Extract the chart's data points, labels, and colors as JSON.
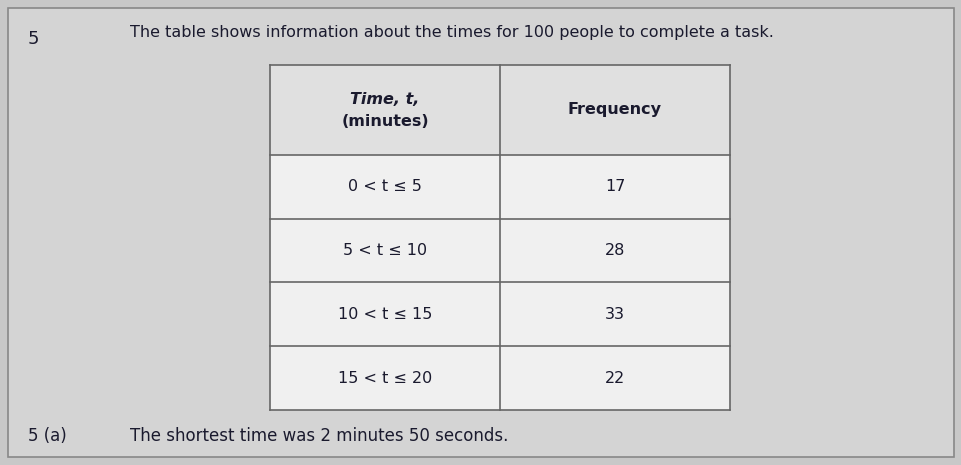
{
  "question_number": "5",
  "question_text": "The table shows information about the times for 100 people to complete a task.",
  "col1_header_line1": "Time, t,",
  "col1_header_line2": "(minutes)",
  "col2_header": "Frequency",
  "rows": [
    {
      "time": "0 < t ≤ 5",
      "freq": "17"
    },
    {
      "time": "5 < t ≤ 10",
      "freq": "28"
    },
    {
      "time": "10 < t ≤ 15",
      "freq": "33"
    },
    {
      "time": "15 < t ≤ 20",
      "freq": "22"
    }
  ],
  "subpart_label": "5 (a)",
  "subpart_text": "The shortest time was 2 minutes 50 seconds.",
  "bg_color": "#c8c8c8",
  "outer_rect_color": "#888888",
  "table_cell_bg": "#f0f0f0",
  "table_header_bg": "#e0e0e0",
  "border_color": "#666666",
  "text_color": "#1a1a2e",
  "outer_frame_bg": "#d4d4d4"
}
